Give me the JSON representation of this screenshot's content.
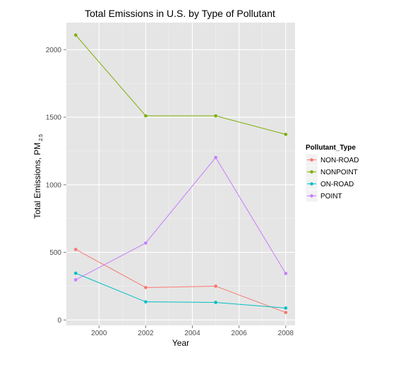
{
  "chart_data": {
    "type": "line",
    "title": "Total Emissions in U.S. by Type of Pollutant",
    "xlabel": "Year",
    "ylabel_main": "Total Emissions, PM",
    "ylabel_sub": "2.5",
    "xlim": [
      1998.6,
      2008.4
    ],
    "ylim": [
      -40,
      2200
    ],
    "x_ticks": [
      2000,
      2002,
      2004,
      2006,
      2008
    ],
    "y_ticks": [
      0,
      500,
      1000,
      1500,
      2000
    ],
    "x_tick_labels": [
      "2000",
      "2002",
      "2004",
      "2006",
      "2008"
    ],
    "y_tick_labels": [
      "0",
      "500",
      "1000",
      "1500",
      "2000"
    ],
    "x": [
      1999,
      2002,
      2005,
      2008
    ],
    "series": [
      {
        "name": "NON-ROAD",
        "color": "#F8766D",
        "values": [
          522,
          240,
          250,
          55
        ]
      },
      {
        "name": "NONPOINT",
        "color": "#7CAE00",
        "values": [
          2108,
          1510,
          1510,
          1373
        ]
      },
      {
        "name": "ON-ROAD",
        "color": "#00BFC4",
        "values": [
          346,
          134,
          130,
          88
        ]
      },
      {
        "name": "POINT",
        "color": "#C77CFF",
        "values": [
          297,
          569,
          1202,
          344
        ]
      }
    ],
    "legend": {
      "title": "Pollutant_Type",
      "position": "right"
    },
    "grid": true
  }
}
